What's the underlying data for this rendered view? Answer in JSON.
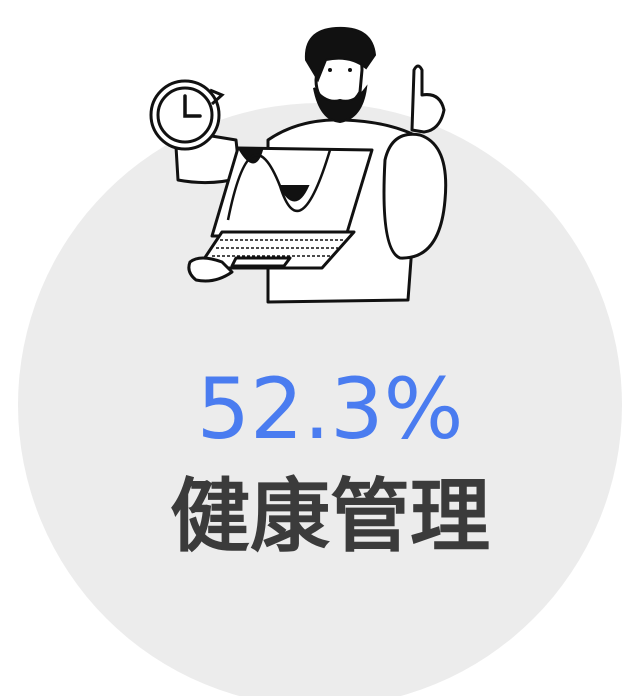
{
  "stat": {
    "percentage": "52.3%",
    "label": "健康管理"
  }
}
